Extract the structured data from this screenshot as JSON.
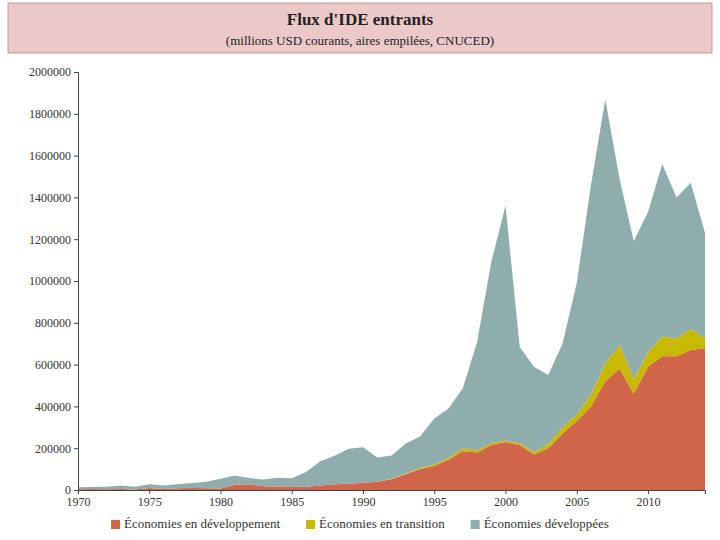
{
  "chart_data": {
    "type": "area",
    "title": "Flux d'IDE entrants",
    "subtitle": "(millions USD courants, aires empilées, CNUCED)",
    "stacked": true,
    "grid": false,
    "legend": "bottom",
    "x": [
      1970,
      1971,
      1972,
      1973,
      1974,
      1975,
      1976,
      1977,
      1978,
      1979,
      1980,
      1981,
      1982,
      1983,
      1984,
      1985,
      1986,
      1987,
      1988,
      1989,
      1990,
      1991,
      1992,
      1993,
      1994,
      1995,
      1996,
      1997,
      1998,
      1999,
      2000,
      2001,
      2002,
      2003,
      2004,
      2005,
      2006,
      2007,
      2008,
      2009,
      2010,
      2011,
      2012,
      2013,
      2014
    ],
    "xlim": [
      1970,
      2014
    ],
    "xticks": [
      1970,
      1975,
      1980,
      1985,
      1990,
      1995,
      2000,
      2005,
      2010
    ],
    "ylim": [
      0,
      2000000
    ],
    "yticks": [
      0,
      200000,
      400000,
      600000,
      800000,
      1000000,
      1200000,
      1400000,
      1600000,
      1800000,
      2000000
    ],
    "series": [
      {
        "name": "Économies en développement",
        "color": "#d0654a",
        "values": [
          4000,
          4500,
          4000,
          5000,
          2000,
          9000,
          5000,
          8000,
          10000,
          8000,
          7500,
          25000,
          27000,
          18000,
          17000,
          14000,
          15000,
          22000,
          28000,
          30000,
          35000,
          40000,
          52000,
          75000,
          100000,
          115000,
          145000,
          185000,
          180000,
          215000,
          230000,
          215000,
          170000,
          200000,
          270000,
          330000,
          400000,
          520000,
          580000,
          460000,
          590000,
          640000,
          640000,
          670000,
          680000
        ]
      },
      {
        "name": "Économies en transition",
        "color": "#c8b800",
        "values": [
          0,
          0,
          0,
          0,
          0,
          0,
          0,
          0,
          0,
          0,
          0,
          0,
          0,
          0,
          0,
          0,
          0,
          0,
          0,
          0,
          0,
          0,
          2000,
          4000,
          5000,
          8000,
          8000,
          15000,
          10000,
          10000,
          7000,
          9000,
          11000,
          20000,
          30000,
          31000,
          57000,
          85000,
          115000,
          70000,
          70000,
          95000,
          85000,
          100000,
          48000
        ]
      },
      {
        "name": "Économies développées",
        "color": "#8fadad",
        "values": [
          9000,
          9500,
          11000,
          16000,
          14000,
          18000,
          17000,
          19000,
          24000,
          32000,
          46500,
          44000,
          31000,
          32000,
          42000,
          42000,
          71000,
          115000,
          136000,
          167000,
          170000,
          115000,
          111000,
          144000,
          151000,
          219000,
          237000,
          287000,
          516000,
          866000,
          1123000,
          460000,
          409000,
          330000,
          400000,
          629000,
          1003000,
          1265000,
          795000,
          660000,
          670000,
          825000,
          675000,
          700000,
          502000
        ]
      }
    ]
  }
}
